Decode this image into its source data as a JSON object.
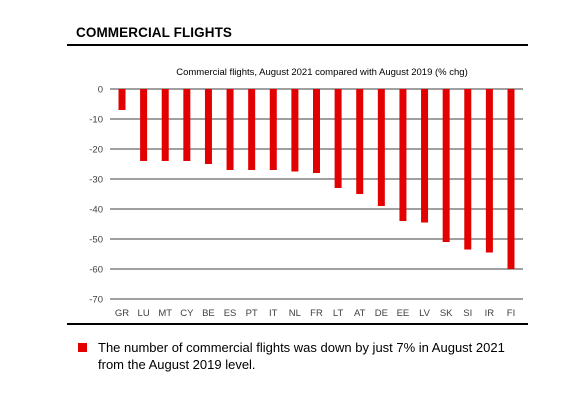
{
  "heading": "COMMERCIAL FLIGHTS",
  "colors": {
    "bar": "#e30000",
    "grid": "#000000"
  },
  "chart_data": {
    "type": "bar",
    "title": "Commercial flights, August 2021 compared with August 2019 (% chg)",
    "categories": [
      "GR",
      "LU",
      "MT",
      "CY",
      "BE",
      "ES",
      "PT",
      "IT",
      "NL",
      "FR",
      "LT",
      "AT",
      "DE",
      "EE",
      "LV",
      "SK",
      "SI",
      "IR",
      "FI"
    ],
    "values": [
      -7,
      -24,
      -24,
      -24,
      -25,
      -27,
      -27,
      -27,
      -27.5,
      -28,
      -33,
      -35,
      -39,
      -44,
      -44.5,
      -51,
      -53.5,
      -54.5,
      -60
    ],
    "ylim": [
      -70,
      0
    ],
    "yticks": [
      0,
      -10,
      -20,
      -30,
      -40,
      -50,
      -60,
      -70
    ],
    "grid": true,
    "legend": "none"
  },
  "note": {
    "text": "The number of commercial flights was down by just 7% in August 2021 from the August 2019 level."
  }
}
